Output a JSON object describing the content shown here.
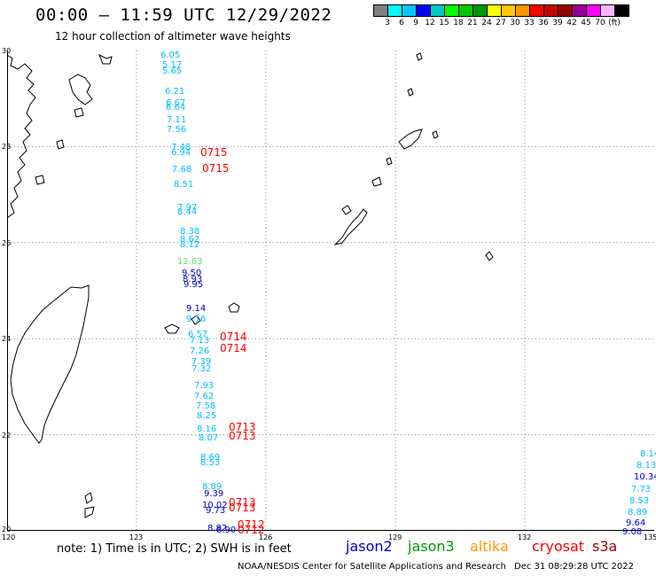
{
  "header": {
    "title": "00:00 – 11:59 UTC 12/29/2022",
    "subtitle": "12 hour collection of altimeter wave heights"
  },
  "colorbar": {
    "colors": [
      "#808080",
      "#00ffff",
      "#00c8ff",
      "#0000ff",
      "#00c8c8",
      "#00ff00",
      "#00c800",
      "#009600",
      "#ffff00",
      "#ffc800",
      "#ff9600",
      "#ff0000",
      "#c80000",
      "#960000",
      "#960096",
      "#ff00ff",
      "#ffb4ff",
      "#000000"
    ],
    "labels": [
      "3",
      "6",
      "9",
      "12",
      "15",
      "18",
      "21",
      "24",
      "27",
      "30",
      "33",
      "36",
      "39",
      "42",
      "45",
      "70",
      "(ft)"
    ]
  },
  "axes": {
    "lat_labels": [
      "30",
      "28",
      "26",
      "24",
      "22",
      "20"
    ],
    "lon_labels": [
      "120",
      "123",
      "126",
      "129",
      "132",
      "135"
    ]
  },
  "wave_heights": [
    {
      "text": "6.05",
      "color": "#00bfff"
    },
    {
      "text": "5.17",
      "color": "#00bfff"
    },
    {
      "text": "5.65",
      "color": "#00bfff"
    },
    {
      "text": "6.21",
      "color": "#00bfff"
    },
    {
      "text": "6.67",
      "color": "#00bfff"
    },
    {
      "text": "6.64",
      "color": "#00bfff"
    },
    {
      "text": "7.11",
      "color": "#00bfff"
    },
    {
      "text": "7.56",
      "color": "#00bfff"
    },
    {
      "text": "7.48",
      "color": "#00bfff"
    },
    {
      "text": "6.94",
      "color": "#00bfff"
    },
    {
      "text": "7.68",
      "color": "#00bfff"
    },
    {
      "text": "8.51",
      "color": "#00bfff"
    },
    {
      "text": "7.97",
      "color": "#00bfff"
    },
    {
      "text": "8.44",
      "color": "#00bfff"
    },
    {
      "text": "8.38",
      "color": "#00bfff"
    },
    {
      "text": "8.62",
      "color": "#00bfff"
    },
    {
      "text": "8.12",
      "color": "#00bfff"
    },
    {
      "text": "12.63",
      "color": "#66dd66"
    },
    {
      "text": "9.50",
      "color": "#0000cc"
    },
    {
      "text": "8.93",
      "color": "#0000cc"
    },
    {
      "text": "9.95",
      "color": "#0000cc"
    },
    {
      "text": "9.14",
      "color": "#0000cc"
    },
    {
      "text": "9.16",
      "color": "#00bfff"
    },
    {
      "text": "6.57",
      "color": "#00bfff"
    },
    {
      "text": "7.13",
      "color": "#00bfff"
    },
    {
      "text": "7.26",
      "color": "#00bfff"
    },
    {
      "text": "7.39",
      "color": "#00bfff"
    },
    {
      "text": "7.32",
      "color": "#00bfff"
    },
    {
      "text": "7.93",
      "color": "#00bfff"
    },
    {
      "text": "7.62",
      "color": "#00bfff"
    },
    {
      "text": "7.58",
      "color": "#00bfff"
    },
    {
      "text": "8.25",
      "color": "#00bfff"
    },
    {
      "text": "8.16",
      "color": "#00bfff"
    },
    {
      "text": "8.07",
      "color": "#00bfff"
    },
    {
      "text": "8.69",
      "color": "#00bfff"
    },
    {
      "text": "8.53",
      "color": "#00bfff"
    },
    {
      "text": "8.89",
      "color": "#00bfff"
    },
    {
      "text": "9.39",
      "color": "#0000cc"
    },
    {
      "text": "10.02",
      "color": "#0000cc"
    },
    {
      "text": "9.73",
      "color": "#0000cc"
    },
    {
      "text": "8.82",
      "color": "#0000cc"
    },
    {
      "text": "8.90",
      "color": "#0000cc"
    },
    {
      "text": "8.14",
      "color": "#00bfff"
    },
    {
      "text": "8.13",
      "color": "#00bfff"
    },
    {
      "text": "10.34",
      "color": "#0000cc"
    },
    {
      "text": "7.73",
      "color": "#00bfff"
    },
    {
      "text": "8.53",
      "color": "#00bfff"
    },
    {
      "text": "8.89",
      "color": "#00bfff"
    },
    {
      "text": "9.64",
      "color": "#0000cc"
    },
    {
      "text": "9.08",
      "color": "#0000cc"
    }
  ],
  "pass_times": [
    "0715",
    "0715",
    "0714",
    "0714",
    "0713",
    "0713",
    "0713",
    "0713",
    "0712",
    "0712"
  ],
  "note": "note: 1) Time is in UTC; 2) SWH is in feet",
  "legend": [
    {
      "label": "jason2",
      "color": "#0000cc"
    },
    {
      "label": "jason3",
      "color": "#009900"
    },
    {
      "label": "altika",
      "color": "#ff9900"
    },
    {
      "label": "cryosat",
      "color": "#ff0000"
    },
    {
      "label": "s3a",
      "color": "#990000"
    }
  ],
  "footer": {
    "credit": "NOAA/NESDIS Center for Satellite Applications and Research",
    "timestamp": "Dec 31 08:29:28 UTC 2022"
  }
}
